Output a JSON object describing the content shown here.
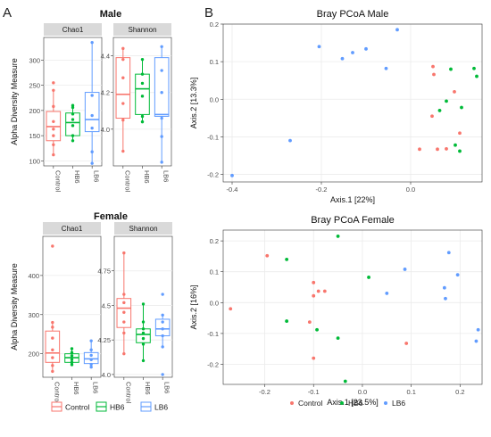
{
  "panel_labels": {
    "a": "A",
    "b": "B"
  },
  "colors": {
    "Control": "#F8766D",
    "HB6": "#00BA38",
    "LB6": "#619CFF",
    "strip": "#D9D9D9",
    "grid": "#EBEBEB",
    "panel_bg": "#FFFFFF"
  },
  "legend": {
    "alpha_groups": [
      "Control",
      "HB6",
      "LB6"
    ],
    "pcoa_groups": [
      "Control",
      "HB6",
      "LB6"
    ]
  },
  "chart_data": [
    {
      "type": "box",
      "id": "male_alpha",
      "title": "Male",
      "ylabel": "Alpha Diversity Measure",
      "groups": [
        "Control",
        "HB6",
        "LB6"
      ],
      "facets": [
        {
          "name": "Chao1",
          "ylim": [
            90,
            345
          ],
          "yticks": [
            100,
            150,
            200,
            250,
            300
          ],
          "boxes": [
            {
              "group": "Control",
              "min": 112,
              "q1": 140,
              "median": 168,
              "q3": 198,
              "max": 240,
              "points": [
                112,
                132,
                150,
                163,
                178,
                208,
                240,
                255
              ]
            },
            {
              "group": "HB6",
              "min": 140,
              "q1": 150,
              "median": 176,
              "q3": 195,
              "max": 210,
              "points": [
                140,
                150,
                170,
                182,
                193,
                206,
                210
              ]
            },
            {
              "group": "LB6",
              "min": 95,
              "q1": 158,
              "median": 182,
              "q3": 236,
              "max": 335,
              "points": [
                95,
                118,
                165,
                190,
                230,
                335
              ]
            }
          ]
        },
        {
          "name": "Shannon",
          "ylim": [
            3.8,
            4.5
          ],
          "yticks": [
            4.0,
            4.2,
            4.4
          ],
          "boxes": [
            {
              "group": "Control",
              "min": 3.88,
              "q1": 4.06,
              "median": 4.19,
              "q3": 4.39,
              "max": 4.44,
              "points": [
                3.88,
                4.05,
                4.14,
                4.28,
                4.38,
                4.44
              ]
            },
            {
              "group": "HB6",
              "min": 4.04,
              "q1": 4.08,
              "median": 4.22,
              "q3": 4.3,
              "max": 4.38,
              "points": [
                4.04,
                4.07,
                4.18,
                4.25,
                4.3,
                4.38
              ]
            },
            {
              "group": "LB6",
              "min": 3.82,
              "q1": 4.07,
              "median": 4.08,
              "q3": 4.39,
              "max": 4.45,
              "points": [
                3.82,
                3.96,
                4.06,
                4.2,
                4.32,
                4.45
              ]
            }
          ]
        }
      ]
    },
    {
      "type": "box",
      "id": "female_alpha",
      "title": "Female",
      "ylabel": "Alpha Diversity Measure",
      "groups": [
        "Control",
        "HB6",
        "LB6"
      ],
      "facets": [
        {
          "name": "Chao1",
          "ylim": [
            140,
            500
          ],
          "yticks": [
            200,
            300,
            400
          ],
          "boxes": [
            {
              "group": "Control",
              "min": 155,
              "q1": 178,
              "median": 202,
              "q3": 258,
              "max": 280,
              "points": [
                155,
                170,
                190,
                210,
                240,
                268,
                280,
                475
              ]
            },
            {
              "group": "HB6",
              "min": 172,
              "q1": 178,
              "median": 190,
              "q3": 200,
              "max": 213,
              "points": [
                172,
                178,
                185,
                195,
                203,
                213
              ]
            },
            {
              "group": "LB6",
              "min": 166,
              "q1": 175,
              "median": 187,
              "q3": 203,
              "max": 233,
              "points": [
                166,
                173,
                185,
                196,
                210,
                233
              ]
            }
          ]
        },
        {
          "name": "Shannon",
          "ylim": [
            3.98,
            5.0
          ],
          "yticks": [
            4.0,
            4.25,
            4.5,
            4.75
          ],
          "boxes": [
            {
              "group": "Control",
              "min": 4.15,
              "q1": 4.34,
              "median": 4.48,
              "q3": 4.55,
              "max": 4.88,
              "points": [
                4.15,
                4.3,
                4.38,
                4.45,
                4.52,
                4.58,
                4.88
              ]
            },
            {
              "group": "HB6",
              "min": 4.1,
              "q1": 4.23,
              "median": 4.29,
              "q3": 4.33,
              "max": 4.51,
              "points": [
                4.1,
                4.22,
                4.26,
                4.3,
                4.33,
                4.38,
                4.51
              ]
            },
            {
              "group": "LB6",
              "min": 4.2,
              "q1": 4.28,
              "median": 4.33,
              "q3": 4.4,
              "max": 4.43,
              "points": [
                4.0,
                4.2,
                4.28,
                4.33,
                4.38,
                4.43,
                4.58
              ]
            }
          ]
        }
      ]
    },
    {
      "type": "scatter",
      "id": "male_pcoa",
      "title": "Bray PCoA Male",
      "xlabel": "Axis.1   [22%]",
      "ylabel": "Axis.2   [13.3%]",
      "xlim": [
        -0.42,
        0.16
      ],
      "ylim": [
        -0.22,
        0.2
      ],
      "xticks": [
        -0.4,
        -0.2,
        0.0
      ],
      "xtick_labels": [
        "-0.4",
        "-0.2",
        "0.0"
      ],
      "yticks": [
        -0.2,
        -0.1,
        0.0,
        0.1,
        0.2
      ],
      "ytick_labels": [
        "-0.2",
        "-0.1",
        "0.0",
        "0.1",
        "0.2"
      ],
      "series": [
        {
          "name": "Control",
          "points": [
            [
              0.05,
              0.087
            ],
            [
              0.052,
              0.066
            ],
            [
              0.048,
              -0.045
            ],
            [
              0.02,
              -0.133
            ],
            [
              0.06,
              -0.133
            ],
            [
              0.08,
              -0.132
            ],
            [
              0.11,
              -0.09
            ],
            [
              0.098,
              0.02
            ]
          ]
        },
        {
          "name": "HB6",
          "points": [
            [
              0.09,
              0.08
            ],
            [
              0.142,
              0.082
            ],
            [
              0.148,
              0.061
            ],
            [
              0.065,
              -0.03
            ],
            [
              0.08,
              -0.005
            ],
            [
              0.114,
              -0.022
            ],
            [
              0.1,
              -0.122
            ],
            [
              0.11,
              -0.138
            ]
          ]
        },
        {
          "name": "LB6",
          "points": [
            [
              -0.4,
              -0.203
            ],
            [
              -0.27,
              -0.11
            ],
            [
              -0.205,
              0.14
            ],
            [
              -0.153,
              0.108
            ],
            [
              -0.13,
              0.124
            ],
            [
              -0.1,
              0.134
            ],
            [
              -0.055,
              0.082
            ],
            [
              -0.03,
              0.185
            ]
          ]
        }
      ]
    },
    {
      "type": "scatter",
      "id": "female_pcoa",
      "title": "Bray PCoA Female",
      "xlabel": "Axis.1   [23.5%]",
      "ylabel": "Axis.2   [16%]",
      "xlim": [
        -0.285,
        0.245
      ],
      "ylim": [
        -0.265,
        0.235
      ],
      "xticks": [
        -0.2,
        -0.1,
        0.0,
        0.1,
        0.2
      ],
      "xtick_labels": [
        "-0.2",
        "-0.1",
        "0.0",
        "0.1",
        "0.2"
      ],
      "yticks": [
        -0.2,
        -0.1,
        0.0,
        0.1,
        0.2
      ],
      "ytick_labels": [
        "-0.2",
        "-0.1",
        "0.0",
        "0.1",
        "0.2"
      ],
      "series": [
        {
          "name": "Control",
          "points": [
            [
              -0.27,
              -0.02
            ],
            [
              -0.195,
              0.152
            ],
            [
              -0.1,
              0.065
            ],
            [
              -0.1,
              0.022
            ],
            [
              -0.09,
              0.037
            ],
            [
              -0.077,
              0.037
            ],
            [
              -0.108,
              -0.063
            ],
            [
              -0.1,
              -0.18
            ],
            [
              0.09,
              -0.132
            ]
          ]
        },
        {
          "name": "HB6",
          "points": [
            [
              -0.155,
              0.14
            ],
            [
              -0.155,
              -0.06
            ],
            [
              -0.093,
              -0.088
            ],
            [
              -0.05,
              0.215
            ],
            [
              -0.05,
              -0.115
            ],
            [
              -0.035,
              -0.255
            ],
            [
              0.013,
              0.082
            ]
          ]
        },
        {
          "name": "LB6",
          "points": [
            [
              0.05,
              0.03
            ],
            [
              0.087,
              0.108
            ],
            [
              0.168,
              0.048
            ],
            [
              0.17,
              0.013
            ],
            [
              0.177,
              0.162
            ],
            [
              0.195,
              0.09
            ],
            [
              0.233,
              -0.125
            ],
            [
              0.237,
              -0.088
            ]
          ]
        }
      ]
    }
  ]
}
